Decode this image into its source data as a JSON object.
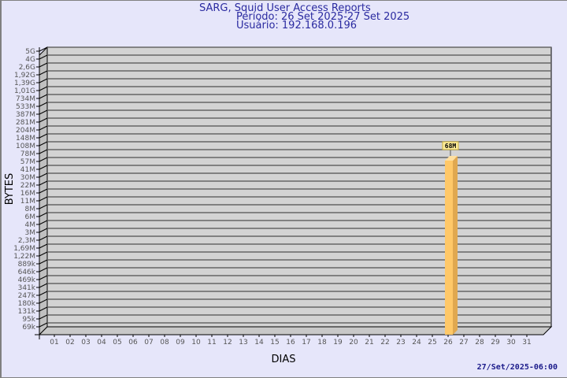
{
  "header": {
    "title": "SARG, Squid User Access Reports",
    "period": "Período: 26 Set 2025-27 Set 2025",
    "user": "Usuário: 192.168.0.196"
  },
  "footer": {
    "timestamp": "27/Set/2025-06:00"
  },
  "colors": {
    "background": "#e6e6fa",
    "plot": "#d3d3d3",
    "bar": "#ffc868",
    "bar_side": "#e0a850",
    "label_box": "#ffee99",
    "title": "#2a2aa0"
  },
  "chart_data": {
    "type": "bar",
    "xlabel": "DIAS",
    "ylabel": "BYTES",
    "y_scale": "log",
    "grid": true,
    "y_tick_labels": [
      "5G",
      "4G",
      "2,6G",
      "1,92G",
      "1,39G",
      "1,01G",
      "734M",
      "533M",
      "387M",
      "281M",
      "204M",
      "148M",
      "108M",
      "78M",
      "57M",
      "41M",
      "30M",
      "22M",
      "16M",
      "11M",
      "8M",
      "6M",
      "4M",
      "3M",
      "2,3M",
      "1,69M",
      "1,22M",
      "889k",
      "646k",
      "469k",
      "341k",
      "247k",
      "180k",
      "131k",
      "95k",
      "69k"
    ],
    "categories": [
      "01",
      "02",
      "03",
      "04",
      "05",
      "06",
      "07",
      "08",
      "09",
      "10",
      "11",
      "12",
      "13",
      "14",
      "15",
      "16",
      "17",
      "18",
      "19",
      "20",
      "21",
      "22",
      "23",
      "24",
      "25",
      "26",
      "27",
      "28",
      "29",
      "30",
      "31"
    ],
    "bars": [
      {
        "category": "26",
        "value_label": "68M",
        "tick_index": 13.6
      }
    ]
  }
}
